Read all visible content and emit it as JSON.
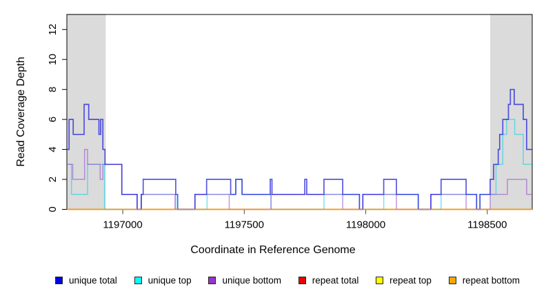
{
  "chart_data": {
    "type": "line",
    "subtype": "step-after-coverage-plot",
    "title": "",
    "xlabel": "Coordinate in Reference Genome",
    "ylabel": "Read Coverage Depth",
    "xlim": [
      1196770,
      1198685
    ],
    "ylim": [
      0,
      13
    ],
    "xticks": [
      1197000,
      1197500,
      1198000,
      1198500
    ],
    "yticks": [
      0,
      2,
      4,
      6,
      8,
      10,
      12
    ],
    "grid": false,
    "legend_position": "bottom",
    "plot_background": "#ffffff",
    "highlight_color": "#dbdbdb",
    "highlight_regions": [
      [
        1196770,
        1196930
      ],
      [
        1198512,
        1198685
      ]
    ],
    "series": [
      {
        "name": "unique total",
        "color": "#2a2adf",
        "legend_color": "#0000ee",
        "opacity": 0.8,
        "width": 1.7,
        "values": [
          [
            1196770,
            4
          ],
          [
            1196779,
            6
          ],
          [
            1196796,
            5
          ],
          [
            1196841,
            7
          ],
          [
            1196860,
            6
          ],
          [
            1196902,
            5
          ],
          [
            1196909,
            6
          ],
          [
            1196918,
            4
          ],
          [
            1196927,
            3
          ],
          [
            1196996,
            1
          ],
          [
            1197059,
            0
          ],
          [
            1197076,
            1
          ],
          [
            1197084,
            2
          ],
          [
            1197218,
            1
          ],
          [
            1197226,
            0
          ],
          [
            1197297,
            1
          ],
          [
            1197345,
            2
          ],
          [
            1197444,
            1
          ],
          [
            1197465,
            2
          ],
          [
            1197491,
            1
          ],
          [
            1197607,
            2
          ],
          [
            1197614,
            1
          ],
          [
            1197749,
            2
          ],
          [
            1197757,
            1
          ],
          [
            1197828,
            2
          ],
          [
            1197905,
            1
          ],
          [
            1197974,
            0
          ],
          [
            1197988,
            1
          ],
          [
            1198074,
            2
          ],
          [
            1198126,
            1
          ],
          [
            1198216,
            0
          ],
          [
            1198268,
            1
          ],
          [
            1198310,
            2
          ],
          [
            1198413,
            1
          ],
          [
            1198456,
            0
          ],
          [
            1198470,
            1
          ],
          [
            1198512,
            2
          ],
          [
            1198526,
            3
          ],
          [
            1198545,
            4
          ],
          [
            1198551,
            5
          ],
          [
            1198564,
            6
          ],
          [
            1198587,
            7
          ],
          [
            1198595,
            8
          ],
          [
            1198611,
            7
          ],
          [
            1198648,
            6
          ],
          [
            1198662,
            4
          ]
        ]
      },
      {
        "name": "unique top",
        "color": "#00d0e8",
        "legend_color": "#00ffff",
        "opacity": 0.55,
        "width": 1.5,
        "values": [
          [
            1196770,
            3
          ],
          [
            1196789,
            1
          ],
          [
            1196855,
            3
          ],
          [
            1196925,
            0
          ],
          [
            1197076,
            1
          ],
          [
            1197218,
            0
          ],
          [
            1197347,
            1
          ],
          [
            1197465,
            2
          ],
          [
            1197491,
            1
          ],
          [
            1197610,
            0
          ],
          [
            1197828,
            1
          ],
          [
            1197974,
            0
          ],
          [
            1198074,
            1
          ],
          [
            1198216,
            0
          ],
          [
            1198310,
            1
          ],
          [
            1198456,
            0
          ],
          [
            1198470,
            1
          ],
          [
            1198536,
            3
          ],
          [
            1198564,
            5
          ],
          [
            1198580,
            6
          ],
          [
            1198613,
            5
          ],
          [
            1198648,
            3
          ]
        ]
      },
      {
        "name": "unique bottom",
        "color": "#9a50d2",
        "legend_color": "#9933cc",
        "opacity": 0.6,
        "width": 1.5,
        "values": [
          [
            1196770,
            3
          ],
          [
            1196794,
            2
          ],
          [
            1196843,
            4
          ],
          [
            1196855,
            3
          ],
          [
            1196907,
            2
          ],
          [
            1196918,
            3
          ],
          [
            1196996,
            1
          ],
          [
            1197059,
            0
          ],
          [
            1197076,
            1
          ],
          [
            1197215,
            0
          ],
          [
            1197297,
            1
          ],
          [
            1197438,
            0
          ],
          [
            1197610,
            1
          ],
          [
            1197905,
            0
          ],
          [
            1197988,
            1
          ],
          [
            1198126,
            0
          ],
          [
            1198268,
            1
          ],
          [
            1198413,
            0
          ],
          [
            1198512,
            1
          ],
          [
            1198583,
            2
          ],
          [
            1198662,
            1
          ]
        ]
      },
      {
        "name": "repeat total",
        "color": "#d40000",
        "legend_color": "#ee0000",
        "opacity": 0.8,
        "width": 1.4,
        "values": [
          [
            1196770,
            0
          ]
        ]
      },
      {
        "name": "repeat top",
        "color": "#ffe400",
        "legend_color": "#ffff00",
        "opacity": 0.85,
        "width": 1.4,
        "values": [
          [
            1196770,
            0
          ]
        ]
      },
      {
        "name": "repeat bottom",
        "color": "#ff9100",
        "legend_color": "#ffa500",
        "opacity": 0.9,
        "width": 1.6,
        "values": [
          [
            1196770,
            0
          ]
        ]
      }
    ]
  }
}
